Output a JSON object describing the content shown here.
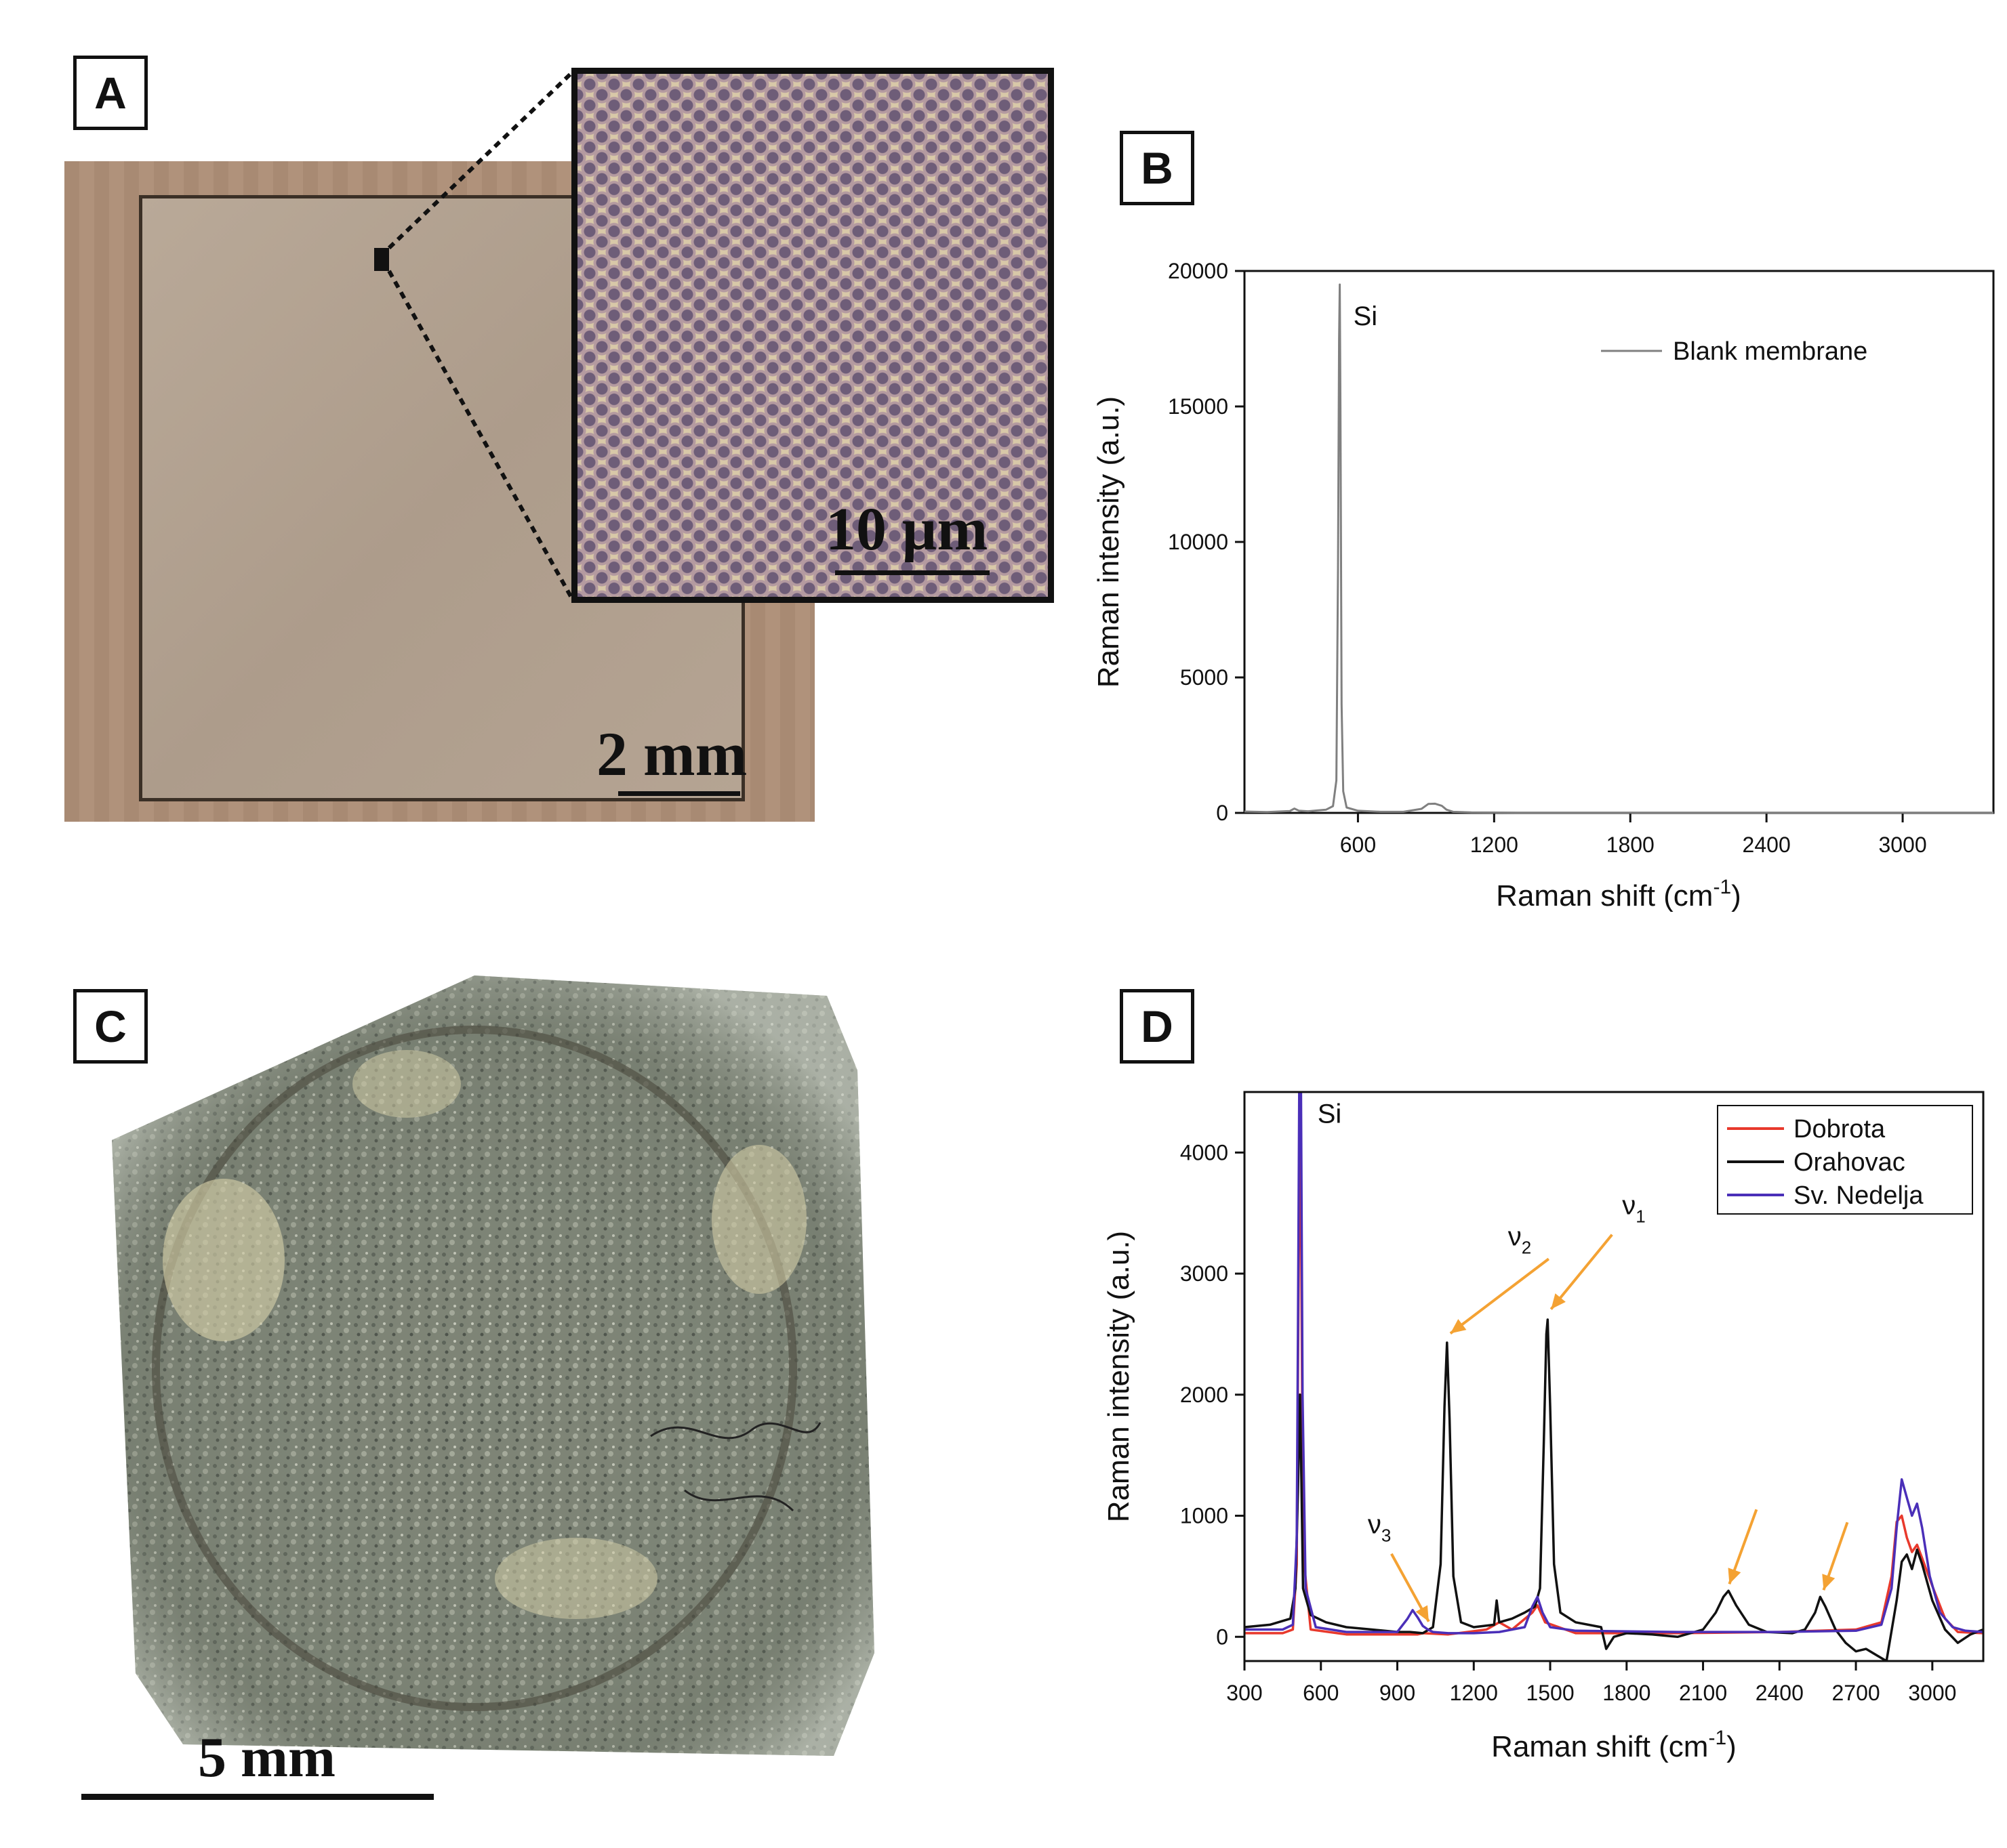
{
  "panels": {
    "a": {
      "label": "A",
      "scale_bar": "2 mm",
      "inset_scale_bar": "10 µm"
    },
    "b": {
      "label": "B"
    },
    "c": {
      "label": "C",
      "scale_bar": "5 mm"
    },
    "d": {
      "label": "D"
    }
  },
  "chart_data": [
    {
      "type": "line",
      "panel": "B",
      "xlabel": "Raman shift (cm⁻¹)",
      "ylabel": "Raman intensity (a.u.)",
      "xlim": [
        100,
        3400
      ],
      "ylim": [
        0,
        20000
      ],
      "xticks": [
        600,
        1200,
        1800,
        2400,
        3000
      ],
      "yticks": [
        0,
        5000,
        10000,
        15000,
        20000
      ],
      "legend_position": "top-right",
      "annotations": [
        {
          "text": "Si",
          "x": 520,
          "y": 19500
        }
      ],
      "series": [
        {
          "name": "Blank membrane",
          "color": "#808080",
          "x": [
            100,
            200,
            300,
            320,
            340,
            380,
            420,
            460,
            490,
            505,
            512,
            517,
            520,
            523,
            528,
            535,
            550,
            600,
            700,
            800,
            880,
            910,
            940,
            970,
            990,
            1020,
            1100,
            1300,
            1600,
            2000,
            2400,
            2800,
            3200,
            3400
          ],
          "y": [
            50,
            30,
            70,
            160,
            80,
            60,
            90,
            120,
            250,
            1200,
            9000,
            17500,
            19500,
            15000,
            4000,
            800,
            200,
            80,
            40,
            40,
            150,
            330,
            340,
            260,
            120,
            40,
            20,
            10,
            10,
            10,
            10,
            10,
            10,
            10
          ]
        }
      ]
    },
    {
      "type": "line",
      "panel": "D",
      "xlabel": "Raman shift (cm⁻¹)",
      "ylabel": "Raman intensity (a.u.)",
      "xlim": [
        300,
        3200
      ],
      "ylim": [
        -200,
        4500
      ],
      "xticks": [
        300,
        600,
        900,
        1200,
        1500,
        1800,
        2100,
        2400,
        2700,
        3000
      ],
      "yticks": [
        0,
        1000,
        2000,
        3000,
        4000
      ],
      "legend_position": "top-right",
      "annotations": [
        {
          "text": "Si",
          "x": 520,
          "y": 4300
        },
        {
          "text": "ν",
          "sub": "2",
          "x": 1095,
          "y": 2450
        },
        {
          "text": "ν",
          "sub": "1",
          "x": 1490,
          "y": 2650
        },
        {
          "text": "ν",
          "sub": "3",
          "x": 1010,
          "y": 70
        },
        {
          "text": "",
          "x": 2190,
          "y": 380
        },
        {
          "text": "",
          "x": 2560,
          "y": 330
        }
      ],
      "series": [
        {
          "name": "Dobrota",
          "color": "#e8392c",
          "x": [
            300,
            450,
            490,
            505,
            512,
            518,
            522,
            530,
            560,
            700,
            900,
            980,
            1000,
            1100,
            1250,
            1300,
            1350,
            1430,
            1450,
            1480,
            1600,
            2000,
            2400,
            2700,
            2800,
            2840,
            2860,
            2880,
            2900,
            2920,
            2940,
            2960,
            3000,
            3050,
            3100,
            3200
          ],
          "y": [
            30,
            30,
            60,
            600,
            2800,
            4400,
            3600,
            700,
            60,
            20,
            20,
            20,
            30,
            20,
            60,
            120,
            60,
            200,
            260,
            120,
            30,
            30,
            40,
            60,
            120,
            500,
            950,
            1000,
            820,
            700,
            760,
            650,
            420,
            150,
            40,
            30
          ]
        },
        {
          "name": "Orahovac",
          "color": "#111111",
          "x": [
            300,
            400,
            480,
            500,
            510,
            518,
            522,
            530,
            560,
            620,
            700,
            800,
            900,
            950,
            1000,
            1040,
            1070,
            1085,
            1095,
            1105,
            1120,
            1150,
            1200,
            1280,
            1290,
            1300,
            1350,
            1400,
            1440,
            1460,
            1475,
            1485,
            1490,
            1500,
            1515,
            1540,
            1600,
            1700,
            1720,
            1750,
            1800,
            1900,
            2000,
            2100,
            2150,
            2180,
            2200,
            2230,
            2280,
            2350,
            2450,
            2500,
            2540,
            2560,
            2580,
            2620,
            2660,
            2700,
            2740,
            2780,
            2820,
            2860,
            2880,
            2900,
            2920,
            2940,
            2960,
            3000,
            3050,
            3100,
            3150,
            3200
          ],
          "y": [
            80,
            100,
            150,
            400,
            1200,
            2000,
            1500,
            400,
            180,
            120,
            80,
            60,
            40,
            40,
            30,
            80,
            600,
            1900,
            2430,
            1800,
            500,
            120,
            80,
            100,
            300,
            120,
            150,
            200,
            250,
            400,
            1600,
            2500,
            2620,
            1900,
            600,
            200,
            120,
            80,
            -100,
            0,
            30,
            20,
            0,
            60,
            200,
            330,
            380,
            260,
            100,
            40,
            30,
            60,
            200,
            330,
            250,
            60,
            -50,
            -120,
            -100,
            -150,
            -200,
            300,
            620,
            680,
            560,
            720,
            600,
            300,
            60,
            -50,
            20,
            60
          ]
        },
        {
          "name": "Sv. Nedelja",
          "color": "#4a2fb8",
          "x": [
            300,
            450,
            490,
            505,
            510,
            515,
            518,
            522,
            528,
            540,
            580,
            700,
            900,
            940,
            960,
            980,
            1000,
            1020,
            1040,
            1100,
            1200,
            1300,
            1400,
            1430,
            1450,
            1470,
            1500,
            1600,
            2000,
            2400,
            2700,
            2800,
            2840,
            2860,
            2880,
            2900,
            2920,
            2940,
            2960,
            2990,
            3030,
            3080,
            3130,
            3200
          ],
          "y": [
            60,
            60,
            100,
            800,
            2500,
            4500,
            4500,
            4500,
            2000,
            400,
            80,
            40,
            40,
            150,
            220,
            160,
            90,
            60,
            40,
            30,
            30,
            40,
            80,
            250,
            330,
            200,
            80,
            50,
            40,
            40,
            50,
            100,
            400,
            900,
            1300,
            1150,
            1000,
            1100,
            900,
            500,
            200,
            80,
            50,
            40
          ]
        }
      ]
    }
  ]
}
